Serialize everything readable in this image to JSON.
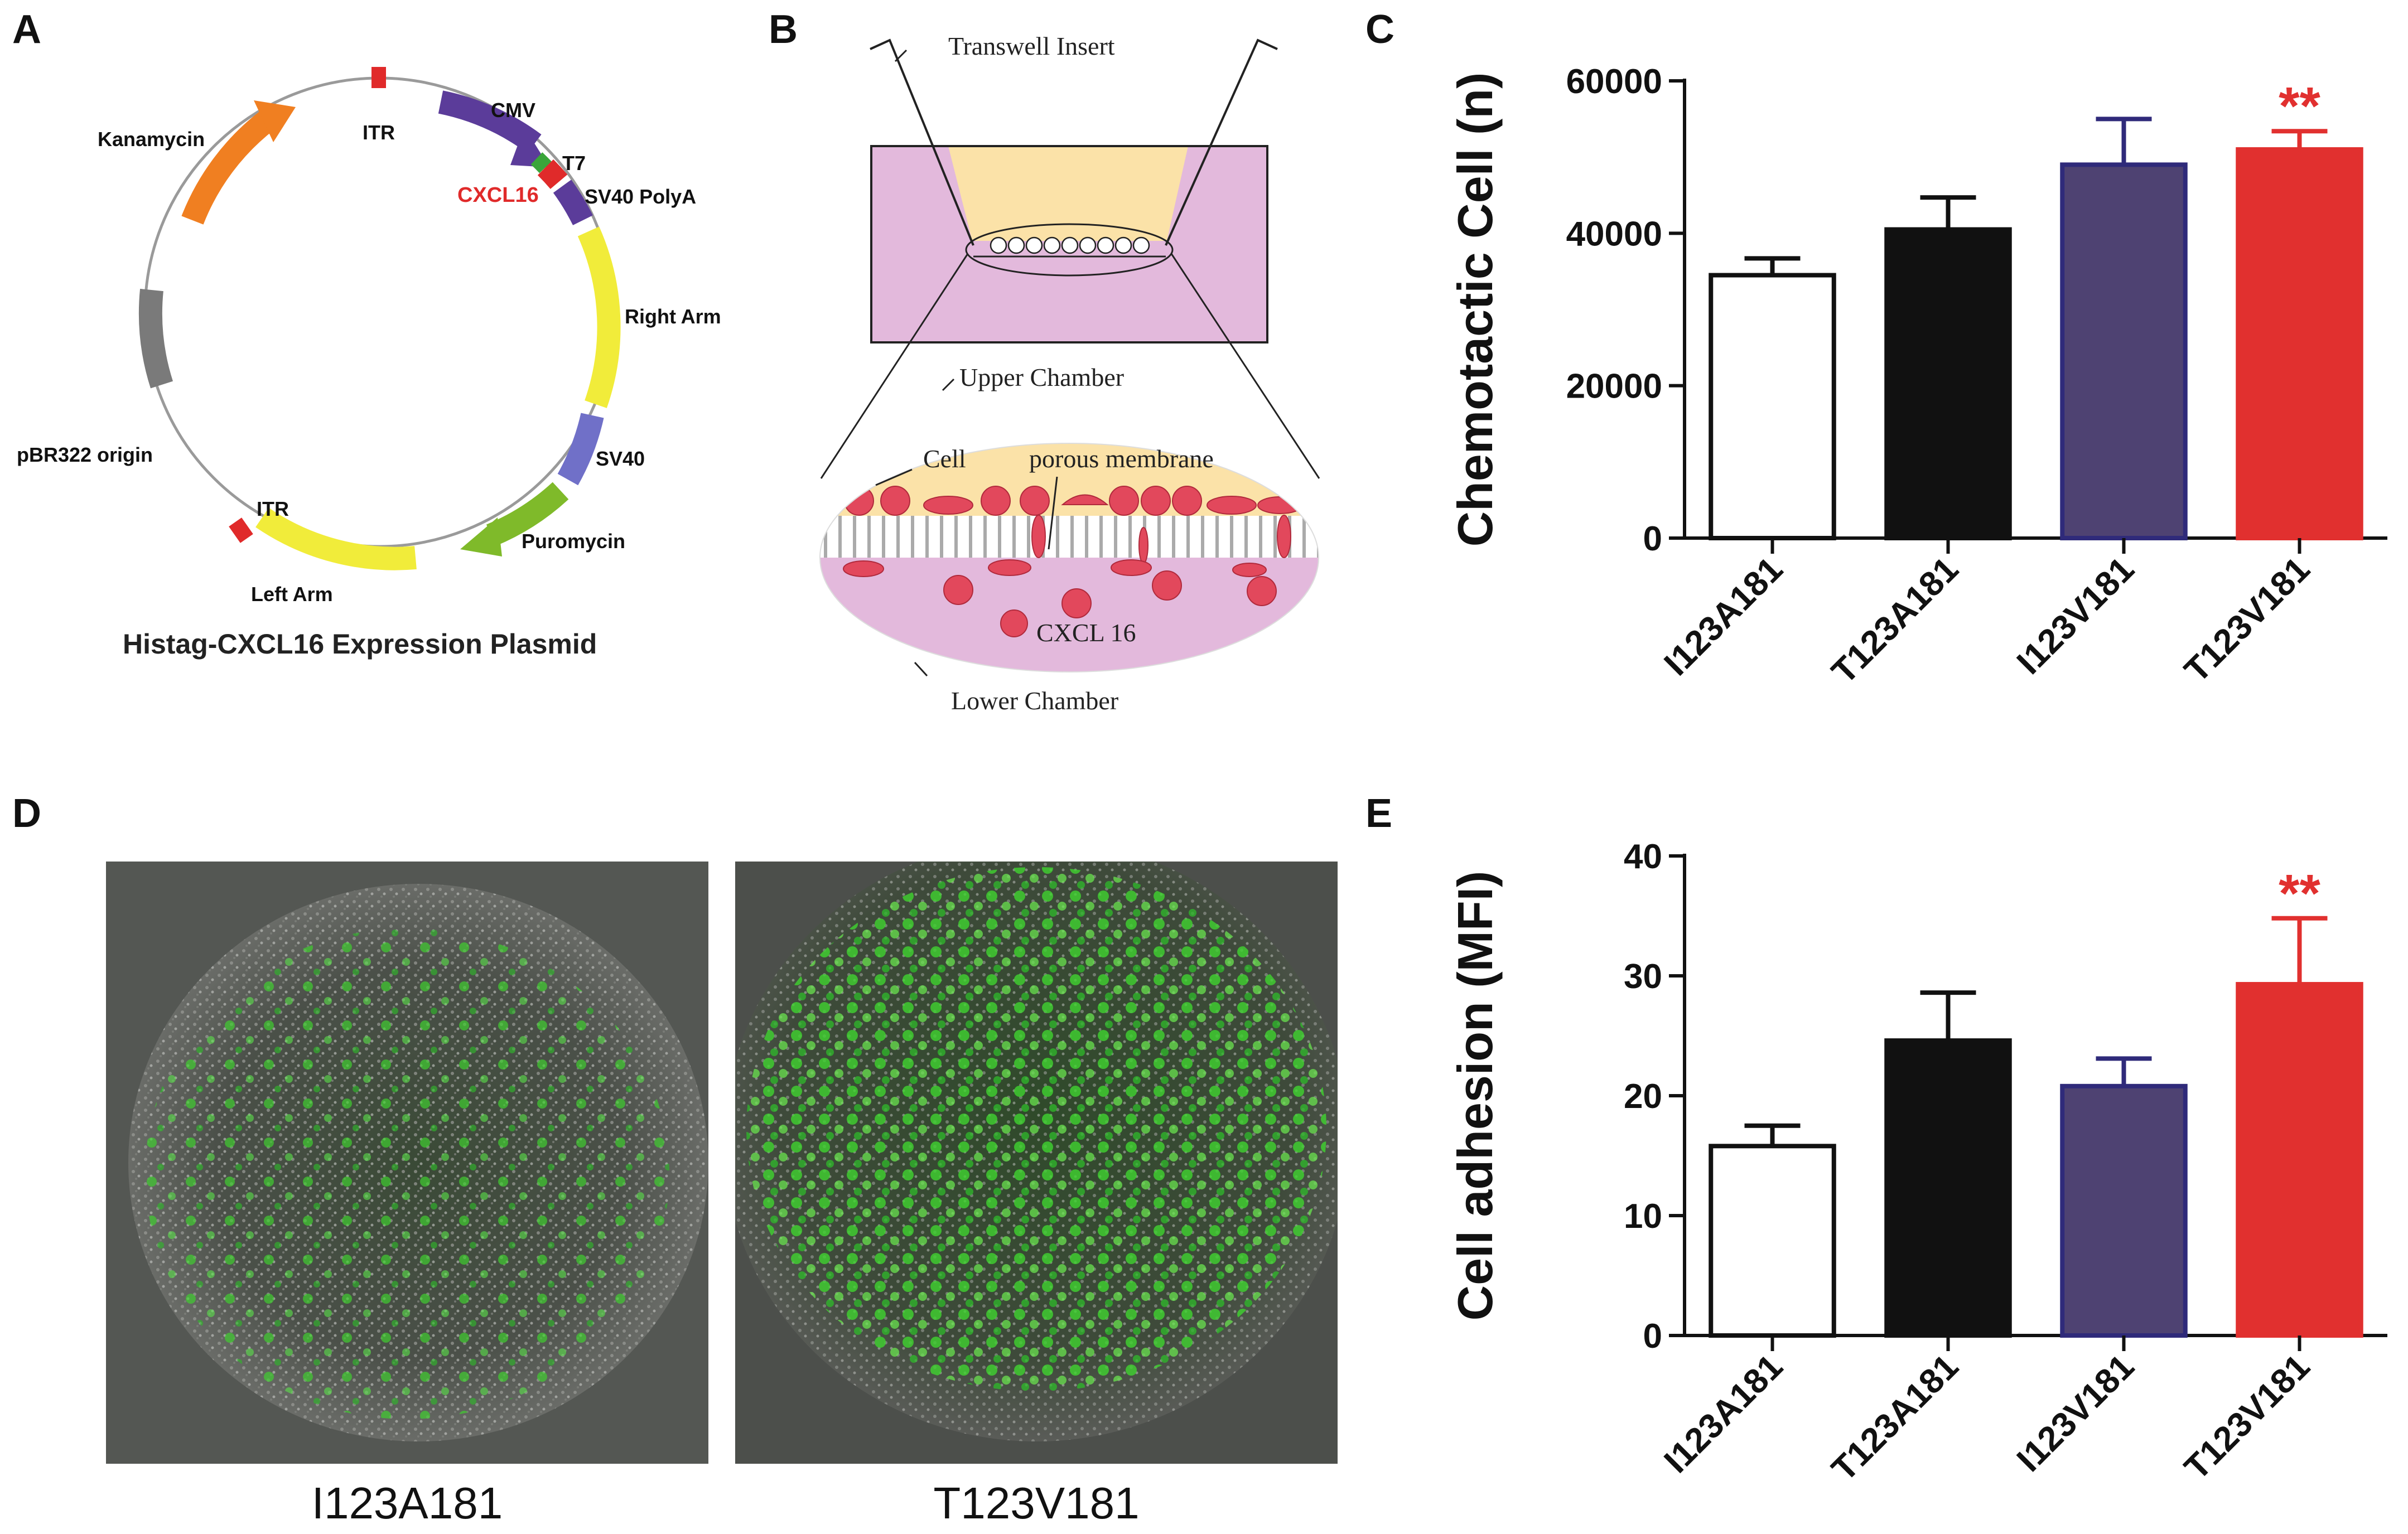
{
  "panels": {
    "a": "A",
    "b": "B",
    "c": "C",
    "d": "D",
    "e": "E"
  },
  "plasmid": {
    "title": "Histag-CXCL16  Expression Plasmid",
    "labels": {
      "itr_top": "ITR",
      "cmv": "CMV",
      "t7": "T7",
      "cxcl16": "CXCL16",
      "sv40_polya": "SV40 PolyA",
      "right_arm": "Right Arm",
      "sv40": "SV40",
      "puromycin": "Puromycin",
      "left_arm": "Left Arm",
      "itr_bottom": "ITR",
      "pbr322": "pBR322 origin",
      "kanamycin": "Kanamycin"
    },
    "colors": {
      "kanamycin": "#f07f21",
      "cmv": "#5b3c9a",
      "t7": "#3aa53a",
      "cxcl16": "#e02a2a",
      "sv40_polya": "#5b3c9a",
      "right_arm": "#f1ec3a",
      "sv40": "#7070c8",
      "puromycin": "#7fba2a",
      "left_arm": "#f1ec3a",
      "itr": "#e02a2a",
      "pbr322": "#7a7a7a"
    }
  },
  "transwell": {
    "insert_label": "Transwell  Insert",
    "upper_label": "Upper  Chamber",
    "cell_label": "Cell",
    "membrane_label": "porous  membrane",
    "chemokine_label": "CXCL 16",
    "lower_label": "Lower  Chamber",
    "colors": {
      "upper": "#fbe2a8",
      "lower": "#e3b9dc",
      "cell": "#e2485c"
    }
  },
  "micrographs": [
    {
      "label": "I123A181"
    },
    {
      "label": "T123V181"
    }
  ],
  "chart_data": [
    {
      "type": "bar",
      "panel": "C",
      "ylabel": "Chemotactic Cell (n)",
      "categories": [
        "I123A181",
        "T123A181",
        "I123V181",
        "T123V181"
      ],
      "values": [
        34500,
        40500,
        49000,
        51000
      ],
      "errors": [
        2200,
        4200,
        6000,
        2400
      ],
      "ylim": [
        0,
        60000
      ],
      "yticks": [
        0,
        20000,
        40000,
        60000
      ],
      "colors": [
        "#ffffff",
        "#111111",
        "#4e4272",
        "#e1302f"
      ],
      "annotations": [
        {
          "category": "T123V181",
          "text": "**",
          "color": "#e1302f"
        }
      ]
    },
    {
      "type": "bar",
      "panel": "E",
      "ylabel": "Cell adhesion (MFI)",
      "categories": [
        "I123A181",
        "T123A181",
        "I123V181",
        "T123V181"
      ],
      "values": [
        15.8,
        24.6,
        20.8,
        29.3
      ],
      "errors": [
        1.7,
        4.0,
        2.3,
        5.5
      ],
      "ylim": [
        0,
        40
      ],
      "yticks": [
        0,
        10,
        20,
        30,
        40
      ],
      "colors": [
        "#ffffff",
        "#111111",
        "#4e4272",
        "#e1302f"
      ],
      "annotations": [
        {
          "category": "T123V181",
          "text": "**",
          "color": "#e1302f"
        }
      ]
    }
  ]
}
